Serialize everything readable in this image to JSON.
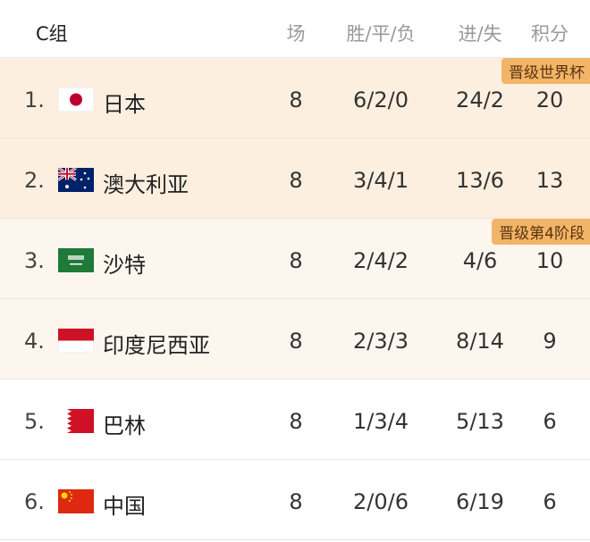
{
  "header": {
    "group": "C组",
    "played": "场",
    "wdl": "胜/平/负",
    "goals": "进/失",
    "points": "积分"
  },
  "colors": {
    "qualify_world_cup": "#fdefe0",
    "qualify_stage4": "#fdf6ee",
    "badge": "#f2b466"
  },
  "rows": [
    {
      "rank": "1.",
      "flag": "japan-flag",
      "team": "日本",
      "played": "8",
      "wdl": "6/2/0",
      "goals": "24/2",
      "points": "20",
      "badge": "晋级世界杯"
    },
    {
      "rank": "2.",
      "flag": "australia-flag",
      "team": "澳大利亚",
      "played": "8",
      "wdl": "3/4/1",
      "goals": "13/6",
      "points": "13"
    },
    {
      "rank": "3.",
      "flag": "saudi-arabia-flag",
      "team": "沙特",
      "played": "8",
      "wdl": "2/4/2",
      "goals": "4/6",
      "points": "10",
      "badge": "晋级第4阶段"
    },
    {
      "rank": "4.",
      "flag": "indonesia-flag",
      "team": "印度尼西亚",
      "played": "8",
      "wdl": "2/3/3",
      "goals": "8/14",
      "points": "9"
    },
    {
      "rank": "5.",
      "flag": "bahrain-flag",
      "team": "巴林",
      "played": "8",
      "wdl": "1/3/4",
      "goals": "5/13",
      "points": "6"
    },
    {
      "rank": "6.",
      "flag": "china-flag",
      "team": "中国",
      "played": "8",
      "wdl": "2/0/6",
      "goals": "6/19",
      "points": "6"
    }
  ]
}
